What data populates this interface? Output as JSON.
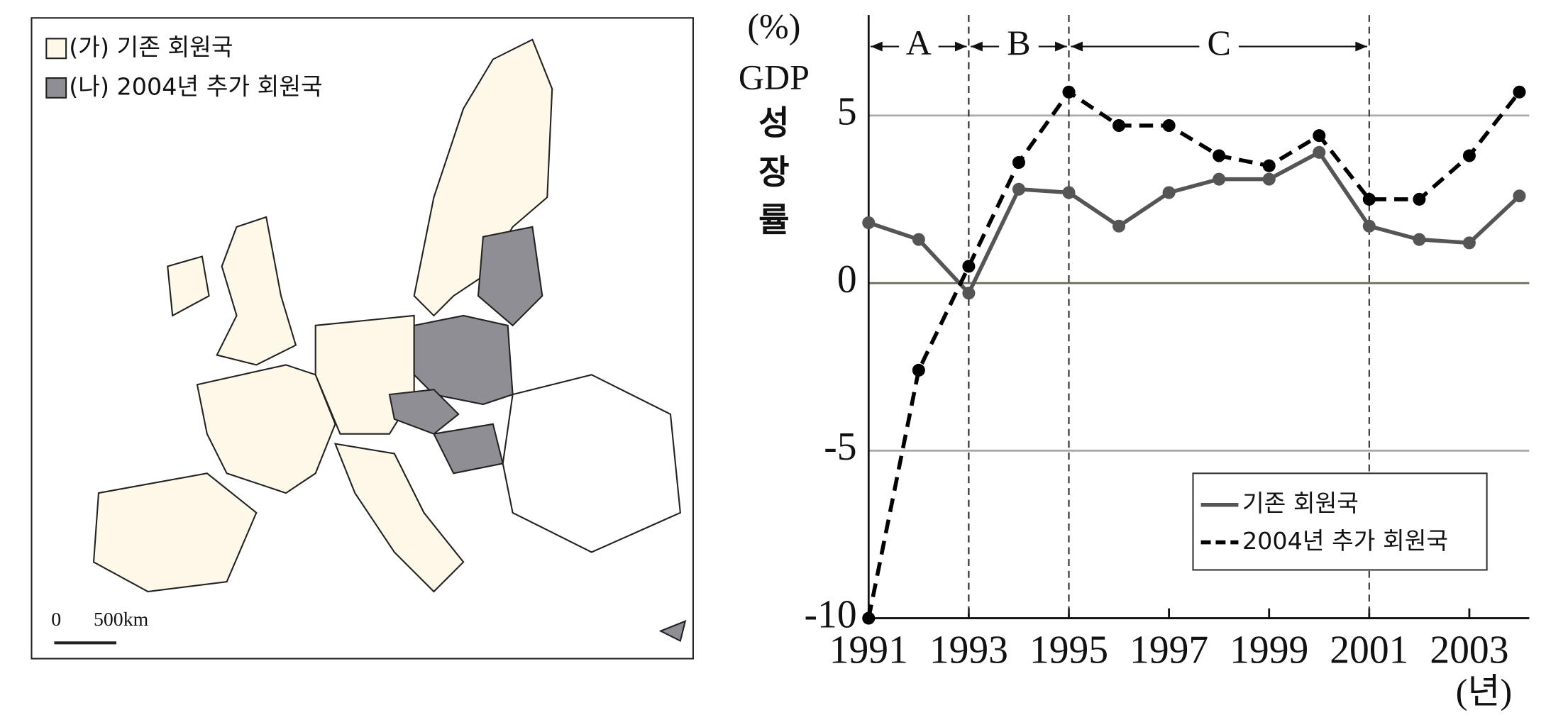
{
  "map": {
    "legend": [
      "(가) 기존 회원국",
      "(나) 2004년 추가 회원국"
    ],
    "scale": [
      "0",
      "500km"
    ]
  },
  "chart_data": {
    "type": "line",
    "y_unit": "(%)",
    "ylabel": [
      "GDP",
      "성",
      "장",
      "률"
    ],
    "x_unit": "(년)",
    "x": [
      1991,
      1992,
      1993,
      1994,
      1995,
      1996,
      1997,
      1998,
      1999,
      2000,
      2001,
      2002,
      2003,
      2004
    ],
    "xlim": [
      1991,
      2004
    ],
    "xticks": [
      1991,
      1993,
      1995,
      1997,
      1999,
      2001,
      2003
    ],
    "ylim": [
      -10,
      8
    ],
    "yticks": [
      -10,
      -5,
      0,
      5
    ],
    "grid": true,
    "periods": [
      {
        "label": "A",
        "start": 1991,
        "end": 1993
      },
      {
        "label": "B",
        "start": 1993,
        "end": 1995
      },
      {
        "label": "C",
        "start": 1995,
        "end": 2001
      }
    ],
    "series": [
      {
        "name": "기존 회원국",
        "color": "#555555",
        "line_style": "solid",
        "values": [
          1.8,
          1.3,
          -0.3,
          2.8,
          2.7,
          1.7,
          2.7,
          3.1,
          3.1,
          3.9,
          1.7,
          1.3,
          1.2,
          2.6
        ]
      },
      {
        "name": "2004년 추가 회원국",
        "color": "#000000",
        "line_style": "dashed",
        "values": [
          -10,
          -2.6,
          0.5,
          3.6,
          5.7,
          4.7,
          4.7,
          3.8,
          3.5,
          4.4,
          2.5,
          2.5,
          3.8,
          5.7
        ]
      }
    ],
    "legend": "lower right"
  }
}
